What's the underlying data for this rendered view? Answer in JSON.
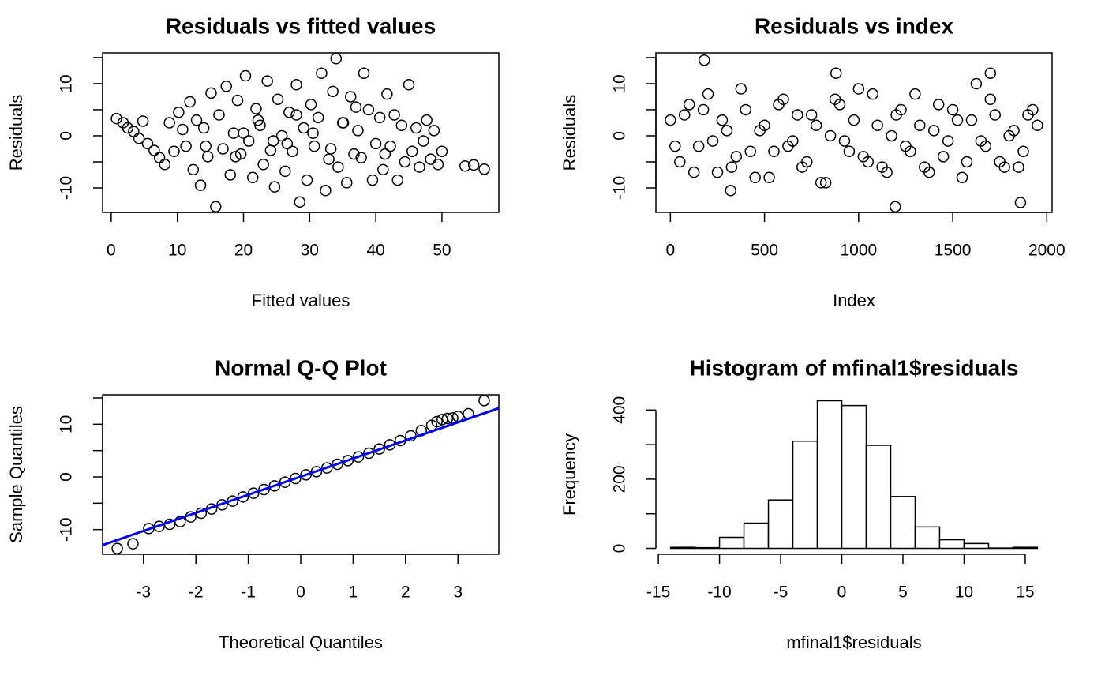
{
  "chart_data": [
    {
      "type": "scatter",
      "title": "Residuals vs fitted values",
      "x_label": "Fitted values",
      "y_label": "Residuals",
      "xlim": [
        -1.3,
        58.6
      ],
      "ylim": [
        -14.7,
        15.9
      ],
      "xticks": [
        0,
        10,
        20,
        30,
        40,
        50
      ],
      "yticks": [
        -10,
        {
          "value": -5,
          "label": null
        },
        0,
        {
          "value": 5,
          "label": null
        },
        10,
        {
          "value": 15,
          "label": null
        }
      ],
      "color": "#000000",
      "grid": false,
      "box": true,
      "x": [
        0.8,
        1.8,
        2.5,
        3.4,
        4.2,
        4.8,
        5.5,
        6.5,
        7.3,
        8.1,
        8.8,
        9.5,
        10.2,
        10.8,
        11.3,
        11.9,
        12.4,
        12.9,
        13.5,
        14.0,
        14.6,
        15.1,
        15.8,
        16.3,
        16.9,
        17.4,
        18.0,
        18.5,
        19.1,
        19.6,
        20.3,
        20.8,
        21.4,
        21.9,
        22.5,
        23.0,
        23.6,
        24.1,
        24.7,
        25.2,
        25.8,
        26.3,
        26.9,
        27.4,
        28.0,
        28.5,
        29.1,
        29.6,
        30.2,
        30.7,
        31.3,
        31.8,
        32.4,
        32.9,
        33.5,
        34.0,
        34.3,
        35.1,
        35.6,
        36.2,
        36.7,
        37.3,
        37.8,
        38.2,
        38.9,
        39.5,
        40.0,
        40.6,
        41.1,
        41.7,
        42.2,
        42.8,
        43.3,
        43.9,
        44.4,
        45.0,
        45.5,
        46.1,
        46.6,
        47.2,
        47.7,
        48.3,
        48.8,
        49.4,
        50.0,
        53.5,
        54.8,
        56.4,
        14.3,
        18.8,
        22.2,
        26.6,
        30.5,
        33.2,
        37.0,
        41.4,
        24.5,
        28.0,
        20.0,
        35.0
      ],
      "values": [
        3.3,
        2.5,
        1.5,
        0.8,
        -0.5,
        2.8,
        -1.5,
        -2.8,
        -4.2,
        -5.5,
        2.5,
        -3.0,
        4.5,
        1.2,
        -2.0,
        6.5,
        -6.5,
        3.0,
        -9.5,
        1.5,
        -4.0,
        8.2,
        -13.6,
        4.0,
        -2.5,
        9.5,
        -7.5,
        0.5,
        6.8,
        -3.5,
        11.5,
        -1.0,
        -8.0,
        5.2,
        2.0,
        -5.5,
        10.5,
        -2.8,
        -9.8,
        7.0,
        0.0,
        -6.8,
        4.5,
        -3.0,
        9.8,
        -12.7,
        1.5,
        -8.5,
        6.0,
        -2.0,
        3.5,
        12.0,
        -10.5,
        -4.5,
        8.5,
        14.8,
        -6.0,
        2.5,
        -9.0,
        7.5,
        -3.5,
        1.0,
        -4.2,
        12.0,
        5.0,
        -8.5,
        -1.5,
        3.5,
        -6.5,
        8.0,
        -2.0,
        4.0,
        -8.5,
        2.0,
        -5.0,
        9.8,
        -3.0,
        1.5,
        -6.0,
        -1.0,
        3.0,
        -4.5,
        1.0,
        -5.5,
        -3.0,
        -5.8,
        -5.6,
        -6.4,
        -2.0,
        -4.0,
        3.0,
        -1.5,
        0.5,
        -2.5,
        5.5,
        -3.5,
        -1.0,
        4.0,
        0.5,
        2.5
      ]
    },
    {
      "type": "scatter",
      "title": "Residuals vs index",
      "x_label": "Index",
      "y_label": "Residuals",
      "xlim": [
        -77,
        2028
      ],
      "ylim": [
        -14.7,
        15.9
      ],
      "xticks": [
        0,
        500,
        1000,
        1500,
        2000
      ],
      "yticks": [
        -10,
        {
          "value": -5,
          "label": null
        },
        0,
        {
          "value": 5,
          "label": null
        },
        10,
        {
          "value": 15,
          "label": null
        }
      ],
      "color": "#000000",
      "grid": false,
      "box": true,
      "x": [
        0,
        50,
        100,
        150,
        200,
        250,
        300,
        350,
        400,
        450,
        500,
        550,
        600,
        650,
        700,
        750,
        800,
        850,
        900,
        950,
        1000,
        1050,
        1100,
        1150,
        1200,
        1250,
        1300,
        1350,
        1400,
        1450,
        1500,
        1550,
        1600,
        1650,
        1700,
        1750,
        1800,
        1850,
        1900,
        1950,
        25,
        75,
        125,
        175,
        225,
        275,
        325,
        375,
        425,
        475,
        525,
        575,
        625,
        675,
        725,
        775,
        825,
        875,
        925,
        975,
        1025,
        1075,
        1125,
        1175,
        1225,
        1275,
        1325,
        1375,
        1425,
        1475,
        1525,
        1575,
        1625,
        1675,
        1725,
        1775,
        1825,
        1875,
        1925,
        180,
        320,
        880,
        1195,
        1700,
        1860
      ],
      "values": [
        3,
        -5,
        6,
        -2,
        8,
        -7,
        1,
        -4,
        5,
        -8,
        2,
        -3,
        7,
        -1,
        -6,
        4,
        -9,
        0,
        6,
        -3,
        9,
        -5,
        2,
        -7,
        4,
        -2,
        8,
        -6,
        1,
        -4,
        5,
        -8,
        3,
        -1,
        7,
        -5,
        0,
        -6,
        4,
        2,
        -2,
        4,
        -7,
        5,
        -1,
        3,
        -6,
        9,
        -3,
        1,
        -8,
        6,
        -2,
        4,
        -5,
        2,
        -9,
        7,
        -1,
        3,
        -4,
        8,
        -6,
        0,
        5,
        -3,
        2,
        -7,
        6,
        -1,
        3,
        -5,
        10,
        -2,
        4,
        -6,
        1,
        -3,
        5,
        14.5,
        -10.5,
        12,
        -13.6,
        12,
        -12.8
      ]
    },
    {
      "type": "scatter",
      "title": "Normal Q-Q Plot",
      "x_label": "Theoretical Quantiles",
      "y_label": "Sample Quantiles",
      "xlim": [
        -3.78,
        3.78
      ],
      "ylim": [
        -14.7,
        15.6
      ],
      "xticks": [
        -3,
        -2,
        -1,
        0,
        1,
        2,
        3
      ],
      "yticks": [
        -10,
        {
          "value": -5,
          "label": null
        },
        0,
        {
          "value": 5,
          "label": null
        },
        10,
        {
          "value": 15,
          "label": null
        }
      ],
      "color": "#000000",
      "grid": false,
      "box": true,
      "line": {
        "intercept": 0.05,
        "slope": 3.44,
        "color": "#0000ff"
      },
      "x": [
        -3.5,
        -3.2,
        -2.9,
        -2.7,
        -2.5,
        -2.3,
        -2.1,
        -1.9,
        -1.7,
        -1.5,
        -1.3,
        -1.1,
        -0.9,
        -0.7,
        -0.5,
        -0.3,
        -0.1,
        0.1,
        0.3,
        0.5,
        0.7,
        0.9,
        1.1,
        1.3,
        1.5,
        1.7,
        1.9,
        2.1,
        2.3,
        2.5,
        2.6,
        2.7,
        2.8,
        2.9,
        3.0,
        3.2,
        3.5
      ],
      "values": [
        -13.6,
        -12.7,
        -9.8,
        -9.4,
        -9.0,
        -8.5,
        -7.6,
        -6.9,
        -6.1,
        -5.3,
        -4.6,
        -3.8,
        -3.1,
        -2.4,
        -1.7,
        -1.0,
        -0.3,
        0.4,
        1.0,
        1.7,
        2.4,
        3.1,
        3.8,
        4.5,
        5.3,
        6.1,
        6.9,
        7.8,
        8.8,
        9.8,
        10.5,
        10.9,
        11.1,
        11.2,
        11.5,
        12.0,
        14.5
      ]
    },
    {
      "type": "histogram",
      "title": "Histogram of mfinal1$residuals",
      "x_label": "mfinal1$residuals",
      "y_label": "Frequency",
      "xlim": [
        -15.2,
        17.2
      ],
      "ylim": [
        -17.1,
        444.1
      ],
      "xticks": [
        -15,
        -10,
        -5,
        0,
        5,
        10,
        15
      ],
      "yticks": [
        0,
        {
          "value": 100,
          "label": null
        },
        200,
        {
          "value": 300,
          "label": null
        },
        400
      ],
      "color": "#ffffff",
      "grid": false,
      "box": false,
      "bins": [
        -14,
        -12,
        -10,
        -8,
        -6,
        -4,
        -2,
        0,
        2,
        4,
        6,
        8,
        10,
        12,
        14,
        16
      ],
      "values": [
        3,
        2,
        32,
        73,
        140,
        310,
        427,
        413,
        298,
        150,
        62,
        25,
        14,
        1,
        3
      ]
    }
  ]
}
